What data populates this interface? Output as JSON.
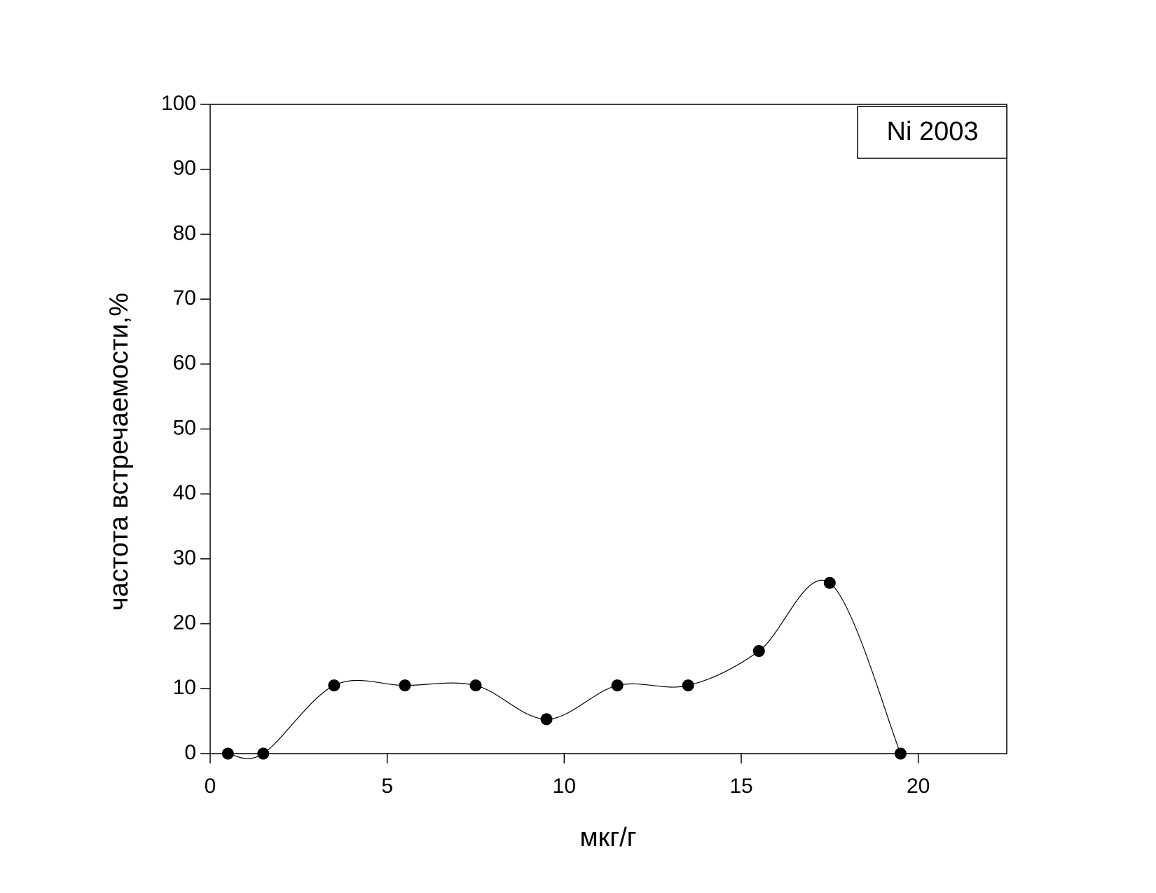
{
  "chart_data": {
    "type": "scatter",
    "line": "smooth",
    "x_label": "мкг/г",
    "y_label": "частота встречаемости,%",
    "x": [
      0.5,
      1.5,
      3.5,
      5.5,
      7.5,
      9.5,
      11.5,
      13.5,
      15.5,
      17.5,
      19.5
    ],
    "series": [
      {
        "name": "Ni 2003",
        "color": "#000000",
        "values": [
          0,
          0,
          10.5,
          10.5,
          10.5,
          5.3,
          10.5,
          10.5,
          15.8,
          26.3,
          0
        ]
      }
    ],
    "xlim": [
      0,
      22.5
    ],
    "xticks": [
      0,
      5,
      10,
      15,
      20
    ],
    "ylim": [
      0,
      100
    ],
    "yticks": [
      0,
      10,
      20,
      30,
      40,
      50,
      60,
      70,
      80,
      90,
      100
    ],
    "grid": false,
    "legend": "top-right"
  }
}
